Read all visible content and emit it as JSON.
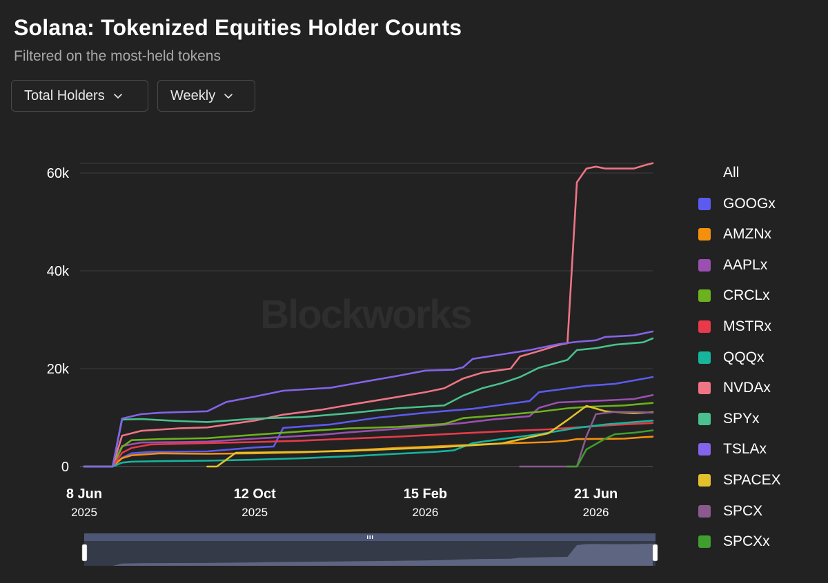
{
  "header": {
    "title": "Solana: Tokenized Equities Holder Counts",
    "subtitle": "Filtered on the most-held tokens"
  },
  "controls": {
    "metric_label": "Total Holders",
    "interval_label": "Weekly"
  },
  "watermark": "Blockworks",
  "legend": {
    "all_label": "All"
  },
  "chart_data": {
    "type": "line",
    "title": "Solana: Tokenized Equities Holder Counts",
    "subtitle": "Filtered on the most-held tokens",
    "ylim": [
      0,
      62000
    ],
    "yticks": [
      {
        "value": 0,
        "label": "0"
      },
      {
        "value": 20000,
        "label": "20k"
      },
      {
        "value": 40000,
        "label": "40k"
      },
      {
        "value": 60000,
        "label": "60k"
      }
    ],
    "xlim": [
      "2025-06-08",
      "2026-08-02"
    ],
    "xticks": [
      {
        "date": "2025-06-08",
        "label": "8 Jun",
        "sub": "2025"
      },
      {
        "date": "2025-10-12",
        "label": "12 Oct",
        "sub": "2025"
      },
      {
        "date": "2026-02-15",
        "label": "15 Feb",
        "sub": "2026"
      },
      {
        "date": "2026-06-21",
        "label": "21 Jun",
        "sub": "2026"
      }
    ],
    "grid": true,
    "legend_position": "right",
    "navigator": {
      "range": [
        "2025-06-08",
        "2026-08-02"
      ]
    },
    "series": [
      {
        "name": "GOOGx",
        "color": "#5b5bf0",
        "points": [
          [
            "2025-06-08",
            0
          ],
          [
            "2025-06-29",
            0
          ],
          [
            "2025-07-06",
            1800
          ],
          [
            "2025-07-13",
            2700
          ],
          [
            "2025-07-27",
            3000
          ],
          [
            "2025-09-07",
            3100
          ],
          [
            "2025-10-12",
            3900
          ],
          [
            "2025-10-26",
            4100
          ],
          [
            "2025-11-02",
            7900
          ],
          [
            "2025-12-07",
            8600
          ],
          [
            "2026-01-11",
            10000
          ],
          [
            "2026-02-15",
            11000
          ],
          [
            "2026-03-22",
            11800
          ],
          [
            "2026-04-12",
            12600
          ],
          [
            "2026-05-03",
            13400
          ],
          [
            "2026-05-10",
            15200
          ],
          [
            "2026-05-24",
            15700
          ],
          [
            "2026-06-14",
            16500
          ],
          [
            "2026-07-05",
            16900
          ],
          [
            "2026-08-02",
            18300
          ]
        ]
      },
      {
        "name": "AMZNx",
        "color": "#f5900f",
        "points": [
          [
            "2025-06-08",
            0
          ],
          [
            "2025-06-29",
            0
          ],
          [
            "2025-07-06",
            1700
          ],
          [
            "2025-07-13",
            2300
          ],
          [
            "2025-08-03",
            2700
          ],
          [
            "2025-09-07",
            2600
          ],
          [
            "2025-10-12",
            2700
          ],
          [
            "2025-11-16",
            2900
          ],
          [
            "2025-12-21",
            3300
          ],
          [
            "2026-01-25",
            3800
          ],
          [
            "2026-03-01",
            4200
          ],
          [
            "2026-04-12",
            4700
          ],
          [
            "2026-05-17",
            5000
          ],
          [
            "2026-05-31",
            5300
          ],
          [
            "2026-06-07",
            5600
          ],
          [
            "2026-07-12",
            5700
          ],
          [
            "2026-07-26",
            6000
          ],
          [
            "2026-08-02",
            6100
          ]
        ]
      },
      {
        "name": "AAPLx",
        "color": "#9b4fb0",
        "points": [
          [
            "2025-06-08",
            0
          ],
          [
            "2025-06-29",
            0
          ],
          [
            "2025-07-06",
            4200
          ],
          [
            "2025-07-20",
            4900
          ],
          [
            "2025-08-17",
            5000
          ],
          [
            "2025-09-07",
            5100
          ],
          [
            "2025-10-12",
            5700
          ],
          [
            "2025-11-30",
            6500
          ],
          [
            "2025-12-21",
            7000
          ],
          [
            "2026-01-25",
            7700
          ],
          [
            "2026-02-15",
            8200
          ],
          [
            "2026-03-15",
            8900
          ],
          [
            "2026-04-05",
            9600
          ],
          [
            "2026-05-03",
            10300
          ],
          [
            "2026-05-10",
            12000
          ],
          [
            "2026-05-24",
            13100
          ],
          [
            "2026-06-28",
            13500
          ],
          [
            "2026-07-19",
            13800
          ],
          [
            "2026-08-02",
            14600
          ]
        ]
      },
      {
        "name": "CRCLx",
        "color": "#6cb21e",
        "points": [
          [
            "2025-06-08",
            0
          ],
          [
            "2025-06-29",
            0
          ],
          [
            "2025-07-06",
            4000
          ],
          [
            "2025-07-13",
            5400
          ],
          [
            "2025-08-03",
            5600
          ],
          [
            "2025-09-07",
            5800
          ],
          [
            "2025-10-12",
            6500
          ],
          [
            "2025-11-16",
            7200
          ],
          [
            "2025-12-21",
            7800
          ],
          [
            "2026-01-25",
            8100
          ],
          [
            "2026-03-01",
            8700
          ],
          [
            "2026-03-15",
            9900
          ],
          [
            "2026-04-12",
            10500
          ],
          [
            "2026-05-10",
            11200
          ],
          [
            "2026-05-31",
            11900
          ],
          [
            "2026-06-14",
            12200
          ],
          [
            "2026-07-12",
            12500
          ],
          [
            "2026-08-02",
            13000
          ]
        ]
      },
      {
        "name": "MSTRx",
        "color": "#e83a4a",
        "points": [
          [
            "2025-06-08",
            0
          ],
          [
            "2025-06-29",
            0
          ],
          [
            "2025-07-06",
            2800
          ],
          [
            "2025-07-13",
            3800
          ],
          [
            "2025-07-27",
            4500
          ],
          [
            "2025-09-07",
            4800
          ],
          [
            "2025-10-12",
            5000
          ],
          [
            "2025-11-16",
            5300
          ],
          [
            "2025-12-21",
            5700
          ],
          [
            "2026-01-25",
            6100
          ],
          [
            "2026-03-01",
            6600
          ],
          [
            "2026-04-12",
            7200
          ],
          [
            "2026-05-17",
            7600
          ],
          [
            "2026-06-07",
            8000
          ],
          [
            "2026-07-05",
            8500
          ],
          [
            "2026-08-02",
            8900
          ]
        ]
      },
      {
        "name": "QQQx",
        "color": "#16b59c",
        "points": [
          [
            "2025-06-08",
            0
          ],
          [
            "2025-06-29",
            0
          ],
          [
            "2025-07-06",
            800
          ],
          [
            "2025-07-13",
            1000
          ],
          [
            "2025-08-03",
            1100
          ],
          [
            "2025-09-07",
            1200
          ],
          [
            "2025-10-12",
            1400
          ],
          [
            "2025-11-16",
            1700
          ],
          [
            "2025-12-21",
            2100
          ],
          [
            "2026-01-25",
            2600
          ],
          [
            "2026-02-22",
            3000
          ],
          [
            "2026-03-08",
            3300
          ],
          [
            "2026-03-22",
            4800
          ],
          [
            "2026-04-12",
            5600
          ],
          [
            "2026-05-10",
            6600
          ],
          [
            "2026-06-07",
            7900
          ],
          [
            "2026-06-28",
            8600
          ],
          [
            "2026-08-02",
            9400
          ]
        ]
      },
      {
        "name": "NVDAx",
        "color": "#ef7584",
        "points": [
          [
            "2025-06-08",
            0
          ],
          [
            "2025-06-29",
            0
          ],
          [
            "2025-07-06",
            6300
          ],
          [
            "2025-07-20",
            7300
          ],
          [
            "2025-08-17",
            7800
          ],
          [
            "2025-09-07",
            8000
          ],
          [
            "2025-10-12",
            9400
          ],
          [
            "2025-11-02",
            10600
          ],
          [
            "2025-11-30",
            11600
          ],
          [
            "2025-12-21",
            12600
          ],
          [
            "2026-01-25",
            14200
          ],
          [
            "2026-02-15",
            15200
          ],
          [
            "2026-03-01",
            16000
          ],
          [
            "2026-03-15",
            18000
          ],
          [
            "2026-03-29",
            19200
          ],
          [
            "2026-04-19",
            20000
          ],
          [
            "2026-04-26",
            22500
          ],
          [
            "2026-05-10",
            23600
          ],
          [
            "2026-05-24",
            24800
          ],
          [
            "2026-05-31",
            25200
          ],
          [
            "2026-06-07",
            58100
          ],
          [
            "2026-06-14",
            60900
          ],
          [
            "2026-06-21",
            61300
          ],
          [
            "2026-06-28",
            60900
          ],
          [
            "2026-07-19",
            60900
          ],
          [
            "2026-07-26",
            61500
          ],
          [
            "2026-08-02",
            62000
          ]
        ]
      },
      {
        "name": "SPYx",
        "color": "#49c08d",
        "points": [
          [
            "2025-06-08",
            0
          ],
          [
            "2025-06-29",
            0
          ],
          [
            "2025-07-06",
            9600
          ],
          [
            "2025-07-20",
            9700
          ],
          [
            "2025-08-17",
            9300
          ],
          [
            "2025-09-07",
            9100
          ],
          [
            "2025-10-12",
            9800
          ],
          [
            "2025-11-16",
            10100
          ],
          [
            "2025-12-21",
            10900
          ],
          [
            "2026-01-25",
            11900
          ],
          [
            "2026-03-01",
            12500
          ],
          [
            "2026-03-15",
            14500
          ],
          [
            "2026-03-29",
            16000
          ],
          [
            "2026-04-12",
            17000
          ],
          [
            "2026-04-26",
            18300
          ],
          [
            "2026-05-10",
            20200
          ],
          [
            "2026-05-31",
            21800
          ],
          [
            "2026-06-07",
            23800
          ],
          [
            "2026-06-21",
            24200
          ],
          [
            "2026-07-05",
            24900
          ],
          [
            "2026-07-26",
            25400
          ],
          [
            "2026-08-02",
            26200
          ]
        ]
      },
      {
        "name": "TSLAx",
        "color": "#8364ea",
        "points": [
          [
            "2025-06-08",
            0
          ],
          [
            "2025-06-29",
            0
          ],
          [
            "2025-07-06",
            9800
          ],
          [
            "2025-07-20",
            10700
          ],
          [
            "2025-08-03",
            11000
          ],
          [
            "2025-09-07",
            11300
          ],
          [
            "2025-09-21",
            13200
          ],
          [
            "2025-10-12",
            14300
          ],
          [
            "2025-11-02",
            15500
          ],
          [
            "2025-12-07",
            16100
          ],
          [
            "2026-01-04",
            17500
          ],
          [
            "2026-01-25",
            18500
          ],
          [
            "2026-02-15",
            19600
          ],
          [
            "2026-03-08",
            19800
          ],
          [
            "2026-03-15",
            20300
          ],
          [
            "2026-03-22",
            22000
          ],
          [
            "2026-04-12",
            22900
          ],
          [
            "2026-05-03",
            23800
          ],
          [
            "2026-05-24",
            25000
          ],
          [
            "2026-06-07",
            25500
          ],
          [
            "2026-06-21",
            25800
          ],
          [
            "2026-06-28",
            26500
          ],
          [
            "2026-07-19",
            26800
          ],
          [
            "2026-08-02",
            27600
          ]
        ]
      },
      {
        "name": "SPACEX",
        "color": "#e2c12c",
        "points": [
          [
            "2025-09-07",
            0
          ],
          [
            "2025-09-14",
            0
          ],
          [
            "2025-09-28",
            2800
          ],
          [
            "2025-11-16",
            3000
          ],
          [
            "2025-12-21",
            3200
          ],
          [
            "2026-01-25",
            3600
          ],
          [
            "2026-03-01",
            4000
          ],
          [
            "2026-04-12",
            4700
          ],
          [
            "2026-05-17",
            6800
          ],
          [
            "2026-05-31",
            9500
          ],
          [
            "2026-06-14",
            12400
          ],
          [
            "2026-06-28",
            11300
          ],
          [
            "2026-07-19",
            10900
          ],
          [
            "2026-08-02",
            11100
          ]
        ]
      },
      {
        "name": "SPCX",
        "color": "#8a5a8f",
        "points": [
          [
            "2026-04-26",
            0
          ],
          [
            "2026-05-31",
            0
          ],
          [
            "2026-06-07",
            0
          ],
          [
            "2026-06-14",
            6200
          ],
          [
            "2026-06-21",
            10700
          ],
          [
            "2026-07-05",
            11200
          ],
          [
            "2026-07-26",
            11100
          ],
          [
            "2026-08-02",
            11000
          ]
        ]
      },
      {
        "name": "SPCXx",
        "color": "#3f9e2d",
        "points": [
          [
            "2026-05-31",
            0
          ],
          [
            "2026-06-07",
            0
          ],
          [
            "2026-06-14",
            3500
          ],
          [
            "2026-06-28",
            5700
          ],
          [
            "2026-07-05",
            6600
          ],
          [
            "2026-07-19",
            6900
          ],
          [
            "2026-08-02",
            7400
          ]
        ]
      }
    ]
  }
}
